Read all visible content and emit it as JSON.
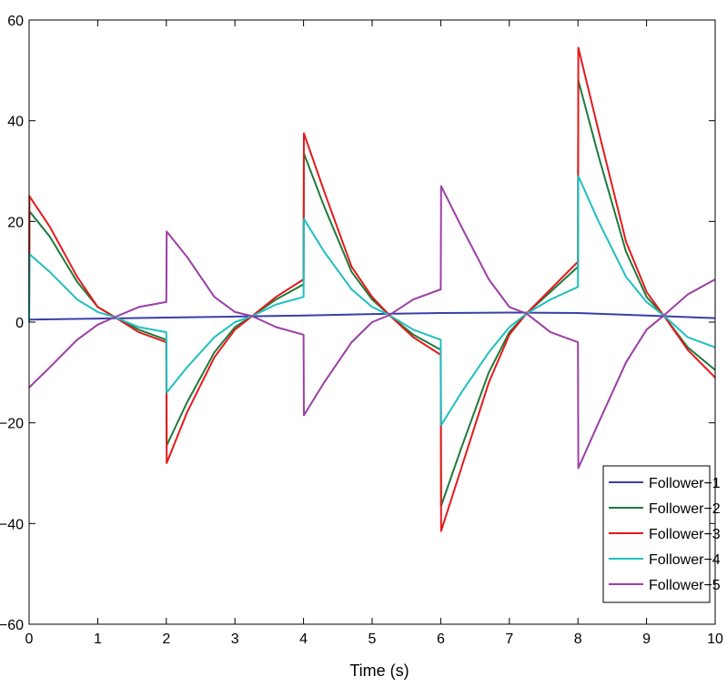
{
  "chart_data": {
    "type": "line",
    "title": "",
    "xlabel": "Time (s)",
    "ylabel": "",
    "xlim": [
      0,
      10
    ],
    "ylim": [
      -60,
      60
    ],
    "xticks": [
      0,
      1,
      2,
      3,
      4,
      5,
      6,
      7,
      8,
      9,
      10
    ],
    "yticks": [
      -60,
      -40,
      -20,
      0,
      20,
      40,
      60
    ],
    "legend_position": "bottom-right",
    "series": [
      {
        "name": "Follower−1",
        "color": "#3a3fa8",
        "x": [
          0,
          1,
          2,
          3,
          4,
          5,
          6,
          7,
          8,
          9,
          10
        ],
        "y": [
          0.5,
          0.7,
          0.9,
          1.1,
          1.3,
          1.6,
          1.8,
          1.9,
          1.8,
          1.3,
          0.8
        ]
      },
      {
        "name": "Follower−2",
        "color": "#1e7a3c",
        "x": [
          0,
          0.005,
          0.3,
          0.7,
          1.0,
          1.25,
          1.6,
          2.0,
          2.005,
          2.3,
          2.7,
          3.0,
          3.25,
          3.6,
          4.0,
          4.005,
          4.3,
          4.7,
          5.0,
          5.25,
          5.6,
          6.0,
          6.005,
          6.3,
          6.7,
          7.0,
          7.25,
          7.6,
          8.0,
          8.005,
          8.3,
          8.7,
          9.0,
          9.25,
          9.6,
          10.0
        ],
        "y": [
          0.0,
          22.0,
          17.0,
          8.0,
          3.0,
          1.0,
          -1.5,
          -3.5,
          -24.5,
          -16.0,
          -6.0,
          -1.0,
          1.2,
          4.5,
          7.5,
          33.5,
          23.0,
          10.0,
          4.5,
          1.4,
          -2.5,
          -5.5,
          -36.5,
          -25.0,
          -10.0,
          -2.0,
          1.7,
          6.0,
          11.0,
          48.0,
          33.0,
          14.0,
          5.0,
          1.3,
          -5.0,
          -9.5
        ]
      },
      {
        "name": "Follower−3",
        "color": "#e41a1c",
        "x": [
          0,
          0.005,
          0.3,
          0.7,
          1.0,
          1.25,
          1.6,
          2.0,
          2.005,
          2.3,
          2.7,
          3.0,
          3.25,
          3.6,
          4.0,
          4.005,
          4.3,
          4.7,
          5.0,
          5.25,
          5.6,
          6.0,
          6.005,
          6.3,
          6.7,
          7.0,
          7.25,
          7.6,
          8.0,
          8.005,
          8.3,
          8.7,
          9.0,
          9.25,
          9.6,
          10.0
        ],
        "y": [
          0.0,
          25.0,
          19.0,
          9.0,
          3.0,
          1.0,
          -2.0,
          -4.0,
          -28.0,
          -18.0,
          -7.0,
          -1.5,
          1.2,
          5.0,
          8.5,
          37.5,
          26.0,
          11.0,
          5.0,
          1.4,
          -3.0,
          -6.5,
          -41.5,
          -29.0,
          -12.0,
          -2.5,
          1.7,
          6.5,
          12.0,
          54.5,
          38.0,
          16.0,
          6.0,
          1.3,
          -5.5,
          -11.0
        ]
      },
      {
        "name": "Follower−4",
        "color": "#1fbfbf",
        "x": [
          0,
          0.005,
          0.3,
          0.7,
          1.0,
          1.25,
          1.6,
          2.0,
          2.005,
          2.3,
          2.7,
          3.0,
          3.25,
          3.6,
          4.0,
          4.005,
          4.3,
          4.7,
          5.0,
          5.25,
          5.6,
          6.0,
          6.005,
          6.3,
          6.7,
          7.0,
          7.25,
          7.6,
          8.0,
          8.005,
          8.3,
          8.7,
          9.0,
          9.25,
          9.6,
          10.0
        ],
        "y": [
          0.0,
          13.5,
          10.0,
          4.5,
          2.0,
          1.0,
          -1.0,
          -2.0,
          -14.0,
          -9.0,
          -3.0,
          0.0,
          1.2,
          3.5,
          5.0,
          20.5,
          14.0,
          6.5,
          3.0,
          1.4,
          -1.5,
          -3.5,
          -20.5,
          -14.0,
          -6.0,
          -1.0,
          1.7,
          4.5,
          7.0,
          29.0,
          20.0,
          9.0,
          4.0,
          1.3,
          -3.0,
          -5.0
        ]
      },
      {
        "name": "Follower−5",
        "color": "#9b3fa6",
        "x": [
          0,
          0.3,
          0.7,
          1.0,
          1.25,
          1.6,
          2.0,
          2.005,
          2.3,
          2.7,
          3.0,
          3.25,
          3.6,
          4.0,
          4.005,
          4.3,
          4.7,
          5.0,
          5.25,
          5.6,
          6.0,
          6.005,
          6.3,
          6.7,
          7.0,
          7.25,
          7.6,
          8.0,
          8.005,
          8.3,
          8.7,
          9.0,
          9.25,
          9.6,
          10.0
        ],
        "y": [
          -13.0,
          -9.0,
          -3.5,
          -0.5,
          1.0,
          3.0,
          4.0,
          18.0,
          13.0,
          5.0,
          2.0,
          1.2,
          -1.0,
          -2.5,
          -18.5,
          -12.0,
          -4.0,
          0.0,
          1.4,
          4.5,
          6.5,
          27.0,
          19.0,
          8.5,
          3.0,
          1.7,
          -2.0,
          -4.0,
          -29.0,
          -20.0,
          -8.0,
          -1.5,
          1.3,
          5.5,
          8.5
        ]
      }
    ]
  }
}
